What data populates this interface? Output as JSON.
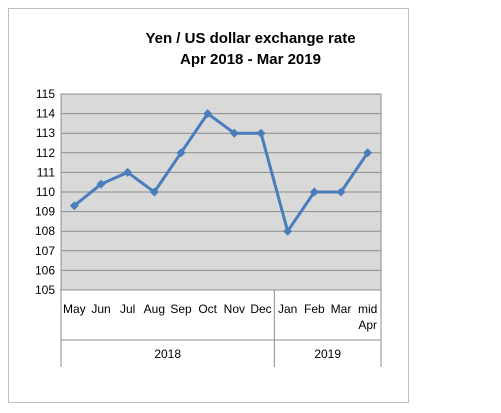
{
  "chart_data": {
    "type": "line",
    "title": "Yen / US dollar exchange rate",
    "subtitle": "Apr 2018 - Mar 2019",
    "categories": [
      "May",
      "Jun",
      "Jul",
      "Aug",
      "Sep",
      "Oct",
      "Nov",
      "Dec",
      "Jan",
      "Feb",
      "Mar",
      "mid Apr"
    ],
    "category_lines": [
      [
        "May"
      ],
      [
        "Jun"
      ],
      [
        "Jul"
      ],
      [
        "Aug"
      ],
      [
        "Sep"
      ],
      [
        "Oct"
      ],
      [
        "Nov"
      ],
      [
        "Dec"
      ],
      [
        "Jan"
      ],
      [
        "Feb"
      ],
      [
        "Mar"
      ],
      [
        "mid",
        "Apr"
      ]
    ],
    "groups": [
      {
        "label": "2018",
        "span": 8
      },
      {
        "label": "2019",
        "span": 4
      }
    ],
    "series": [
      {
        "values": [
          109.3,
          110.4,
          111.0,
          110.0,
          112.0,
          114.0,
          113.0,
          113.0,
          108.0,
          110.0,
          110.0,
          112.0
        ]
      }
    ],
    "ylim": [
      105,
      115
    ],
    "yticks": [
      105,
      106,
      107,
      108,
      109,
      110,
      111,
      112,
      113,
      114,
      115
    ],
    "xlabel": "",
    "ylabel": "",
    "grid": true,
    "colors": {
      "line": "#4a7ebb",
      "plot_bg": "#d9d9d9",
      "grid": "#8c8c8c"
    }
  }
}
